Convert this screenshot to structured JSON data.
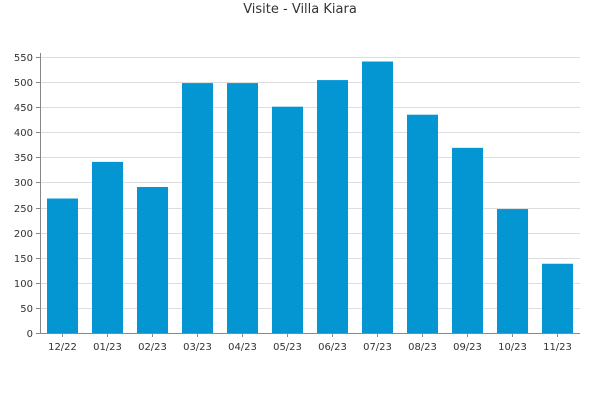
{
  "chart_data": {
    "type": "bar",
    "title": "Visite - Villa Kiara",
    "xlabel": "",
    "ylabel": "",
    "categories": [
      "12/22",
      "01/23",
      "02/23",
      "03/23",
      "04/23",
      "05/23",
      "06/23",
      "07/23",
      "08/23",
      "09/23",
      "10/23",
      "11/23"
    ],
    "values": [
      268,
      341,
      291,
      498,
      498,
      451,
      504,
      541,
      435,
      369,
      247,
      138
    ],
    "ylim": [
      0,
      550
    ],
    "yticks": [
      0,
      50,
      100,
      150,
      200,
      250,
      300,
      350,
      400,
      450,
      500,
      550
    ],
    "grid": true,
    "legend": "none",
    "colors": {
      "bar": "#0396d3",
      "grid": "#dddddd",
      "axis": "#888888",
      "text": "#333333"
    }
  }
}
